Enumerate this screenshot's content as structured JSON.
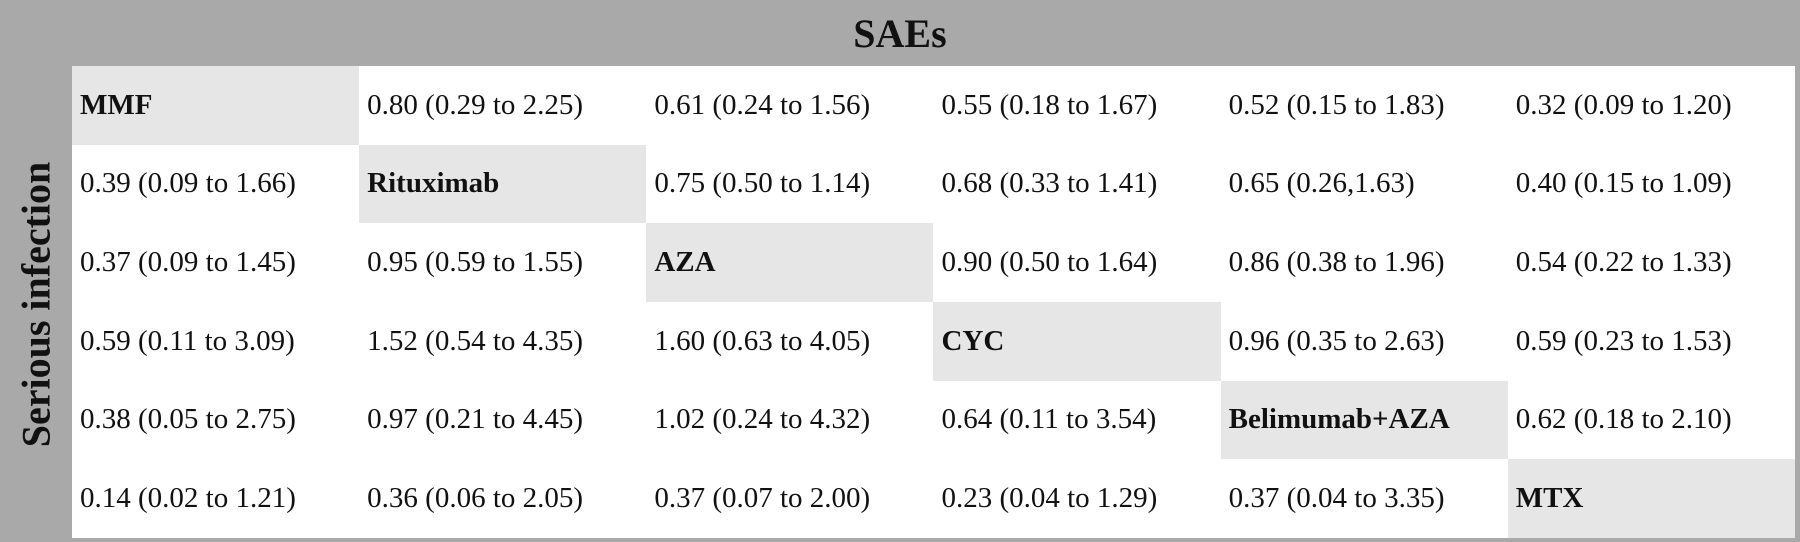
{
  "headers": {
    "top": "SAEs",
    "side": "Serious infection"
  },
  "matrix": {
    "rows": [
      [
        "MMF",
        "0.80 (0.29 to 2.25)",
        "0.61 (0.24 to 1.56)",
        "0.55 (0.18 to 1.67)",
        "0.52 (0.15 to 1.83)",
        "0.32 (0.09 to 1.20)"
      ],
      [
        "0.39 (0.09 to 1.66)",
        "Rituximab",
        "0.75 (0.50 to 1.14)",
        "0.68 (0.33 to 1.41)",
        "0.65 (0.26,1.63)",
        "0.40 (0.15 to 1.09)"
      ],
      [
        "0.37 (0.09 to 1.45)",
        "0.95 (0.59 to 1.55)",
        "AZA",
        "0.90 (0.50 to 1.64)",
        "0.86 (0.38 to 1.96)",
        "0.54 (0.22 to 1.33)"
      ],
      [
        "0.59 (0.11 to 3.09)",
        "1.52 (0.54 to 4.35)",
        "1.60 (0.63 to 4.05)",
        "CYC",
        "0.96 (0.35 to 2.63)",
        "0.59 (0.23 to 1.53)"
      ],
      [
        "0.38 (0.05 to 2.75)",
        "0.97 (0.21 to 4.45)",
        "1.02 (0.24 to 4.32)",
        "0.64 (0.11 to 3.54)",
        "Belimumab+AZA",
        "0.62 (0.18 to 2.10)"
      ],
      [
        "0.14 (0.02 to 1.21)",
        "0.36 (0.06 to 2.05)",
        "0.37 (0.07 to 2.00)",
        "0.23 (0.04 to 1.29)",
        "0.37 (0.04 to 3.35)",
        "MTX"
      ]
    ]
  }
}
